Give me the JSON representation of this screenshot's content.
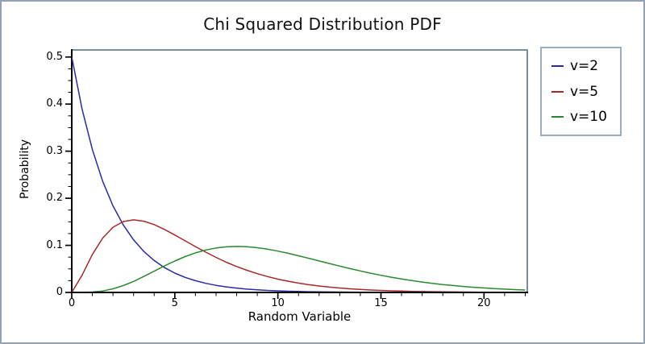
{
  "title": "Chi Squared Distribution PDF",
  "axes": {
    "x": {
      "label": "Random Variable",
      "ticks": [
        {
          "value": 0,
          "label": "0"
        },
        {
          "value": 5,
          "label": "5"
        },
        {
          "value": 10,
          "label": "10"
        },
        {
          "value": 15,
          "label": "15"
        },
        {
          "value": 20,
          "label": "20"
        }
      ],
      "minor_step": 1,
      "minor_max": 22
    },
    "y": {
      "label": "Probability",
      "ticks": [
        {
          "value": 0,
          "label": "0"
        },
        {
          "value": 0.1,
          "label": "0.1"
        },
        {
          "value": 0.2,
          "label": "0.2"
        },
        {
          "value": 0.3,
          "label": "0.3"
        },
        {
          "value": 0.4,
          "label": "0.4"
        },
        {
          "value": 0.5,
          "label": "0.5"
        }
      ],
      "minor_step": 0.025,
      "minor_max": 0.5
    }
  },
  "style": {
    "window_border_color": "#93a2b6",
    "plot_frame_color": "#7d8da3",
    "axis_color": "#000000",
    "legend_border_color": "#9fadbe",
    "text_color": "#000000"
  },
  "chart_data": {
    "type": "line",
    "title": "Chi Squared Distribution PDF",
    "xlabel": "Random Variable",
    "ylabel": "Probability",
    "xlim": [
      0,
      22.1
    ],
    "ylim": [
      0,
      0.515
    ],
    "grid": false,
    "legend_position": "outside-right",
    "x_start": 0,
    "x_step": 0.5,
    "series": [
      {
        "name": "v=2",
        "df": 2,
        "color": "#2a2aab",
        "values": [
          0.5,
          0.3894,
          0.3033,
          0.2362,
          0.1839,
          0.1433,
          0.1116,
          0.0869,
          0.0677,
          0.0527,
          0.041,
          0.032,
          0.0249,
          0.0194,
          0.0151,
          0.0118,
          0.0092,
          0.0071,
          0.0056,
          0.0043,
          0.0034,
          0.0026,
          0.002,
          0.0016,
          0.0012,
          0.001,
          0.0008,
          0.0006,
          0.0005,
          0.0004,
          0.0003,
          0.0002,
          0.0002,
          0.0001,
          0.0001,
          0.0001,
          0.0001,
          0,
          0,
          0,
          0,
          0,
          0,
          0,
          0
        ]
      },
      {
        "name": "v=5",
        "df": 5,
        "color": "#a62a2a",
        "values": [
          0,
          0.0366,
          0.0807,
          0.1154,
          0.1384,
          0.1506,
          0.1542,
          0.1513,
          0.144,
          0.1338,
          0.122,
          0.1097,
          0.0973,
          0.0855,
          0.0744,
          0.0642,
          0.0551,
          0.047,
          0.0399,
          0.0337,
          0.0283,
          0.0237,
          0.0198,
          0.0165,
          0.0137,
          0.0113,
          0.0094,
          0.0077,
          0.0064,
          0.0052,
          0.0043,
          0.0035,
          0.0029,
          0.0023,
          0.0019,
          0.0015,
          0.0013,
          0.001,
          0.0008,
          0.0007,
          0.0005,
          0.0004,
          0.0004,
          0.0003,
          0.0002
        ]
      },
      {
        "name": "v=10",
        "df": 10,
        "color": "#2a8a2e",
        "values": [
          0,
          0.0001,
          0.0008,
          0.0031,
          0.0077,
          0.0146,
          0.0235,
          0.034,
          0.0451,
          0.0563,
          0.0668,
          0.0762,
          0.084,
          0.0901,
          0.0944,
          0.0969,
          0.0977,
          0.097,
          0.0949,
          0.0918,
          0.0877,
          0.0831,
          0.0779,
          0.0725,
          0.0669,
          0.0614,
          0.0559,
          0.0506,
          0.0456,
          0.0409,
          0.0365,
          0.0324,
          0.0286,
          0.0252,
          0.0221,
          0.0193,
          0.0168,
          0.0147,
          0.0127,
          0.011,
          0.0095,
          0.0081,
          0.007,
          0.006,
          0.0051
        ]
      }
    ]
  }
}
